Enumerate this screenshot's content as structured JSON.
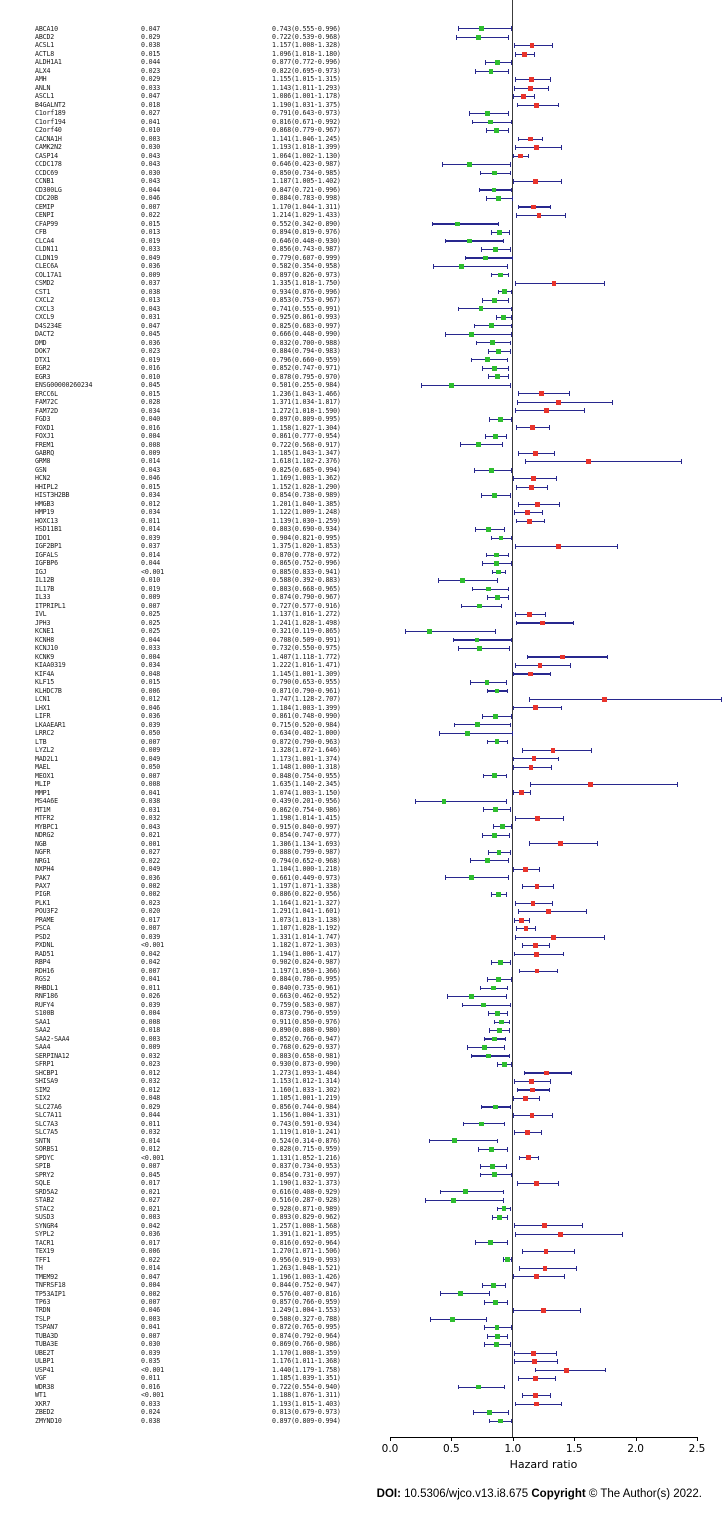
{
  "chart_data": {
    "type": "forest",
    "xlabel": "Hazard ratio",
    "xlim": [
      0.0,
      2.5
    ],
    "x_ticks": [
      0.0,
      0.5,
      1.0,
      1.5,
      2.0,
      2.5
    ],
    "x_tick_labels": [
      "0.0",
      "0.5",
      "1.0",
      "1.5",
      "2.0",
      "2.5"
    ],
    "reference_line": 1.0,
    "legend_position": "none",
    "grid": false,
    "colors": {
      "hr_below_1": "#2fbe2f",
      "hr_above_1": "#e8342c",
      "ci_line": "#28288e"
    },
    "row_format": [
      "gene",
      "p_value",
      "hazard_ratio",
      "ci_low",
      "ci_high"
    ],
    "rows": [
      [
        "ABCA10",
        "0.047",
        0.743,
        0.555,
        0.996
      ],
      [
        "ABCD2",
        "0.029",
        0.722,
        0.539,
        0.968
      ],
      [
        "ACSL1",
        "0.038",
        1.157,
        1.008,
        1.328
      ],
      [
        "ACTL8",
        "0.015",
        1.096,
        1.018,
        1.18
      ],
      [
        "ALDH1A1",
        "0.044",
        0.877,
        0.772,
        0.996
      ],
      [
        "ALX4",
        "0.023",
        0.822,
        0.695,
        0.973
      ],
      [
        "AMH",
        "0.029",
        1.155,
        1.015,
        1.315
      ],
      [
        "ANLN",
        "0.033",
        1.143,
        1.011,
        1.293
      ],
      [
        "ASCL1",
        "0.047",
        1.086,
        1.001,
        1.178
      ],
      [
        "B4GALNT2",
        "0.018",
        1.19,
        1.031,
        1.375
      ],
      [
        "C1orf189",
        "0.027",
        0.791,
        0.643,
        0.973
      ],
      [
        "C1orf194",
        "0.041",
        0.816,
        0.671,
        0.992
      ],
      [
        "C2orf40",
        "0.010",
        0.868,
        0.779,
        0.967
      ],
      [
        "CACNA1H",
        "0.003",
        1.141,
        1.046,
        1.245
      ],
      [
        "CAMK2N2",
        "0.030",
        1.193,
        1.018,
        1.399
      ],
      [
        "CASP14",
        "0.043",
        1.064,
        1.002,
        1.13
      ],
      [
        "CCDC178",
        "0.043",
        0.646,
        0.423,
        0.987
      ],
      [
        "CCDC69",
        "0.030",
        0.85,
        0.734,
        0.985
      ],
      [
        "CCNB1",
        "0.043",
        1.187,
        1.005,
        1.402
      ],
      [
        "CD300LG",
        "0.044",
        0.847,
        0.721,
        0.996
      ],
      [
        "CDC20B",
        "0.046",
        0.884,
        0.783,
        0.998
      ],
      [
        "CEMIP",
        "0.007",
        1.17,
        1.044,
        1.311
      ],
      [
        "CENPI",
        "0.022",
        1.214,
        1.029,
        1.433
      ],
      [
        "CFAP99",
        "0.015",
        0.552,
        0.342,
        0.89
      ],
      [
        "CFB",
        "0.013",
        0.894,
        0.819,
        0.976
      ],
      [
        "CLCA4",
        "0.019",
        0.646,
        0.448,
        0.93
      ],
      [
        "CLDN11",
        "0.033",
        0.856,
        0.743,
        0.987
      ],
      [
        "CLDN19",
        "0.049",
        0.779,
        0.607,
        0.999
      ],
      [
        "CLEC6A",
        "0.036",
        0.582,
        0.354,
        0.958
      ],
      [
        "COL17A1",
        "0.009",
        0.897,
        0.826,
        0.973
      ],
      [
        "CSMD2",
        "0.037",
        1.335,
        1.018,
        1.75
      ],
      [
        "CST1",
        "0.038",
        0.934,
        0.876,
        0.996
      ],
      [
        "CXCL2",
        "0.013",
        0.853,
        0.753,
        0.967
      ],
      [
        "CXCL3",
        "0.043",
        0.741,
        0.555,
        0.991
      ],
      [
        "CXCL9",
        "0.031",
        0.925,
        0.861,
        0.993
      ],
      [
        "D4S234E",
        "0.047",
        0.825,
        0.683,
        0.997
      ],
      [
        "DACT2",
        "0.045",
        0.666,
        0.448,
        0.99
      ],
      [
        "DMD",
        "0.036",
        0.832,
        0.7,
        0.988
      ],
      [
        "DOK7",
        "0.023",
        0.884,
        0.794,
        0.983
      ],
      [
        "DTX1",
        "0.019",
        0.796,
        0.66,
        0.959
      ],
      [
        "EGR2",
        "0.016",
        0.852,
        0.747,
        0.971
      ],
      [
        "EGR3",
        "0.010",
        0.878,
        0.795,
        0.97
      ],
      [
        "ENSG00000260234",
        "0.045",
        0.501,
        0.255,
        0.984
      ],
      [
        "ERCC6L",
        "0.015",
        1.236,
        1.043,
        1.466
      ],
      [
        "FAM72C",
        "0.028",
        1.371,
        1.034,
        1.817
      ],
      [
        "FAM72D",
        "0.034",
        1.272,
        1.018,
        1.59
      ],
      [
        "FGD3",
        "0.040",
        0.897,
        0.809,
        0.995
      ],
      [
        "FOXD1",
        "0.016",
        1.158,
        1.027,
        1.304
      ],
      [
        "FOXJ1",
        "0.004",
        0.861,
        0.777,
        0.954
      ],
      [
        "FREM1",
        "0.008",
        0.722,
        0.568,
        0.917
      ],
      [
        "GABRQ",
        "0.009",
        1.185,
        1.043,
        1.347
      ],
      [
        "GRM8",
        "0.014",
        1.618,
        1.102,
        2.376
      ],
      [
        "GSN",
        "0.043",
        0.825,
        0.685,
        0.994
      ],
      [
        "HCN2",
        "0.046",
        1.169,
        1.003,
        1.362
      ],
      [
        "HHIPL2",
        "0.015",
        1.152,
        1.028,
        1.29
      ],
      [
        "HIST3H2BB",
        "0.034",
        0.854,
        0.738,
        0.989
      ],
      [
        "HMGB3",
        "0.012",
        1.201,
        1.04,
        1.385
      ],
      [
        "HMP19",
        "0.034",
        1.122,
        1.009,
        1.248
      ],
      [
        "HOXC13",
        "0.011",
        1.139,
        1.03,
        1.259
      ],
      [
        "HSD11B1",
        "0.014",
        0.803,
        0.69,
        0.934
      ],
      [
        "IDO1",
        "0.039",
        0.904,
        0.821,
        0.995
      ],
      [
        "IGF2BP1",
        "0.037",
        1.375,
        1.02,
        1.853
      ],
      [
        "IGFALS",
        "0.014",
        0.87,
        0.778,
        0.972
      ],
      [
        "IGFBP6",
        "0.044",
        0.865,
        0.752,
        0.996
      ],
      [
        "IGJ",
        "<0.001",
        0.885,
        0.833,
        0.941
      ],
      [
        "IL12B",
        "0.010",
        0.588,
        0.392,
        0.883
      ],
      [
        "IL17B",
        "0.019",
        0.803,
        0.668,
        0.965
      ],
      [
        "IL33",
        "0.009",
        0.874,
        0.79,
        0.967
      ],
      [
        "ITPRIPL1",
        "0.007",
        0.727,
        0.577,
        0.916
      ],
      [
        "IVL",
        "0.025",
        1.137,
        1.016,
        1.272
      ],
      [
        "JPH3",
        "0.025",
        1.241,
        1.028,
        1.498
      ],
      [
        "KCNE1",
        "0.025",
        0.321,
        0.119,
        0.865
      ],
      [
        "KCNH8",
        "0.044",
        0.708,
        0.509,
        0.991
      ],
      [
        "KCNJ10",
        "0.033",
        0.732,
        0.55,
        0.975
      ],
      [
        "KCNK9",
        "0.004",
        1.407,
        1.118,
        1.772
      ],
      [
        "KIAA0319",
        "0.034",
        1.222,
        1.016,
        1.471
      ],
      [
        "KIF4A",
        "0.048",
        1.145,
        1.001,
        1.309
      ],
      [
        "KLF15",
        "0.015",
        0.79,
        0.653,
        0.955
      ],
      [
        "KLHDC7B",
        "0.006",
        0.871,
        0.79,
        0.961
      ],
      [
        "LCN1",
        "0.012",
        1.747,
        1.128,
        2.707
      ],
      [
        "LHX1",
        "0.046",
        1.184,
        1.003,
        1.399
      ],
      [
        "LIFR",
        "0.036",
        0.861,
        0.748,
        0.99
      ],
      [
        "LKAAEAR1",
        "0.039",
        0.715,
        0.52,
        0.984
      ],
      [
        "LRRC2",
        "0.050",
        0.634,
        0.402,
        1.0
      ],
      [
        "LTB",
        "0.007",
        0.872,
        0.79,
        0.963
      ],
      [
        "LYZL2",
        "0.009",
        1.328,
        1.072,
        1.646
      ],
      [
        "MAD2L1",
        "0.049",
        1.173,
        1.001,
        1.374
      ],
      [
        "MAEL",
        "0.050",
        1.148,
        1.0,
        1.318
      ],
      [
        "MEOX1",
        "0.007",
        0.848,
        0.754,
        0.955
      ],
      [
        "MLIP",
        "0.008",
        1.635,
        1.14,
        2.345
      ],
      [
        "MMP1",
        "0.041",
        1.074,
        1.003,
        1.15
      ],
      [
        "MS4A6E",
        "0.038",
        0.439,
        0.201,
        0.956
      ],
      [
        "MT1M",
        "0.031",
        0.862,
        0.754,
        0.986
      ],
      [
        "MTFR2",
        "0.032",
        1.198,
        1.014,
        1.415
      ],
      [
        "MYBPC1",
        "0.043",
        0.915,
        0.84,
        0.997
      ],
      [
        "NDRG2",
        "0.021",
        0.854,
        0.747,
        0.977
      ],
      [
        "NGB",
        "0.001",
        1.386,
        1.134,
        1.693
      ],
      [
        "NGFR",
        "0.027",
        0.888,
        0.799,
        0.987
      ],
      [
        "NRG1",
        "0.022",
        0.794,
        0.652,
        0.968
      ],
      [
        "NXPH4",
        "0.049",
        1.104,
        1.0,
        1.218
      ],
      [
        "PAK7",
        "0.036",
        0.661,
        0.449,
        0.973
      ],
      [
        "PAX7",
        "0.002",
        1.197,
        1.071,
        1.338
      ],
      [
        "PIGR",
        "0.002",
        0.886,
        0.822,
        0.956
      ],
      [
        "PLK1",
        "0.023",
        1.164,
        1.021,
        1.327
      ],
      [
        "POU3F2",
        "0.020",
        1.291,
        1.041,
        1.601
      ],
      [
        "PRAME",
        "0.017",
        1.073,
        1.013,
        1.138
      ],
      [
        "PSCA",
        "0.007",
        1.107,
        1.028,
        1.192
      ],
      [
        "PSD2",
        "0.039",
        1.331,
        1.014,
        1.747
      ],
      [
        "PXDNL",
        "<0.001",
        1.182,
        1.072,
        1.303
      ],
      [
        "RAD51",
        "0.042",
        1.194,
        1.006,
        1.417
      ],
      [
        "RBP4",
        "0.042",
        0.902,
        0.824,
        0.987
      ],
      [
        "RDH16",
        "0.007",
        1.197,
        1.05,
        1.366
      ],
      [
        "RGS2",
        "0.041",
        0.884,
        0.786,
        0.995
      ],
      [
        "RHBDL1",
        "0.011",
        0.84,
        0.735,
        0.961
      ],
      [
        "RNF186",
        "0.026",
        0.663,
        0.462,
        0.952
      ],
      [
        "RUFY4",
        "0.039",
        0.759,
        0.583,
        0.987
      ],
      [
        "S100B",
        "0.004",
        0.873,
        0.796,
        0.959
      ],
      [
        "SAA1",
        "0.008",
        0.911,
        0.85,
        0.976
      ],
      [
        "SAA2",
        "0.018",
        0.89,
        0.808,
        0.98
      ],
      [
        "SAA2-SAA4",
        "0.003",
        0.852,
        0.766,
        0.947
      ],
      [
        "SAA4",
        "0.009",
        0.768,
        0.629,
        0.937
      ],
      [
        "SERPINA12",
        "0.032",
        0.803,
        0.658,
        0.981
      ],
      [
        "SFRP1",
        "0.023",
        0.93,
        0.873,
        0.99
      ],
      [
        "SHCBP1",
        "0.012",
        1.273,
        1.093,
        1.484
      ],
      [
        "SHISA9",
        "0.032",
        1.153,
        1.012,
        1.314
      ],
      [
        "SIM2",
        "0.012",
        1.16,
        1.033,
        1.302
      ],
      [
        "SIX2",
        "0.048",
        1.105,
        1.001,
        1.219
      ],
      [
        "SLC27A6",
        "0.029",
        0.856,
        0.744,
        0.984
      ],
      [
        "SLC7A11",
        "0.044",
        1.156,
        1.004,
        1.331
      ],
      [
        "SLC7A3",
        "0.011",
        0.743,
        0.591,
        0.934
      ],
      [
        "SLC7A5",
        "0.032",
        1.119,
        1.01,
        1.241
      ],
      [
        "SNTN",
        "0.014",
        0.524,
        0.314,
        0.876
      ],
      [
        "SORBS1",
        "0.012",
        0.828,
        0.715,
        0.959
      ],
      [
        "SPDYC",
        "<0.001",
        1.131,
        1.052,
        1.216
      ],
      [
        "SPIB",
        "0.007",
        0.837,
        0.734,
        0.953
      ],
      [
        "SPRY2",
        "0.045",
        0.854,
        0.731,
        0.997
      ],
      [
        "SQLE",
        "0.017",
        1.19,
        1.032,
        1.373
      ],
      [
        "SRD5A2",
        "0.021",
        0.616,
        0.408,
        0.929
      ],
      [
        "STAB2",
        "0.027",
        0.516,
        0.287,
        0.928
      ],
      [
        "STAC2",
        "0.021",
        0.928,
        0.871,
        0.989
      ],
      [
        "SUSD3",
        "0.003",
        0.893,
        0.829,
        0.962
      ],
      [
        "SYNGR4",
        "0.042",
        1.257,
        1.008,
        1.568
      ],
      [
        "SYPL2",
        "0.036",
        1.391,
        1.021,
        1.895
      ],
      [
        "TACR1",
        "0.017",
        0.816,
        0.692,
        0.964
      ],
      [
        "TEX19",
        "0.006",
        1.27,
        1.071,
        1.506
      ],
      [
        "TFF1",
        "0.022",
        0.956,
        0.919,
        0.993
      ],
      [
        "TH",
        "0.014",
        1.263,
        1.048,
        1.521
      ],
      [
        "TMEM92",
        "0.047",
        1.196,
        1.003,
        1.426
      ],
      [
        "TNFRSF18",
        "0.004",
        0.844,
        0.752,
        0.947
      ],
      [
        "TP53AIP1",
        "0.002",
        0.576,
        0.407,
        0.816
      ],
      [
        "TP63",
        "0.007",
        0.857,
        0.766,
        0.959
      ],
      [
        "TRDN",
        "0.046",
        1.249,
        1.004,
        1.553
      ],
      [
        "TSLP",
        "0.003",
        0.508,
        0.327,
        0.788
      ],
      [
        "TSPAN7",
        "0.041",
        0.872,
        0.765,
        0.995
      ],
      [
        "TUBA3D",
        "0.007",
        0.874,
        0.792,
        0.964
      ],
      [
        "TUBA3E",
        "0.030",
        0.869,
        0.766,
        0.986
      ],
      [
        "UBE2T",
        "0.039",
        1.17,
        1.008,
        1.359
      ],
      [
        "ULBP1",
        "0.035",
        1.176,
        1.011,
        1.368
      ],
      [
        "USP41",
        "<0.001",
        1.44,
        1.179,
        1.758
      ],
      [
        "VGF",
        "0.011",
        1.185,
        1.039,
        1.351
      ],
      [
        "WDR38",
        "0.016",
        0.722,
        0.554,
        0.94
      ],
      [
        "WT1",
        "<0.001",
        1.188,
        1.076,
        1.311
      ],
      [
        "XKR7",
        "0.033",
        1.193,
        1.015,
        1.403
      ],
      [
        "ZBED2",
        "0.024",
        0.813,
        0.679,
        0.973
      ],
      [
        "ZMYND10",
        "0.038",
        0.897,
        0.809,
        0.994
      ]
    ]
  },
  "footer": {
    "doi_label": "DOI:",
    "doi_value": "10.5306/wjco.v13.i8.675",
    "copyright_label": "Copyright",
    "copyright_value": "© The Author(s) 2022."
  }
}
